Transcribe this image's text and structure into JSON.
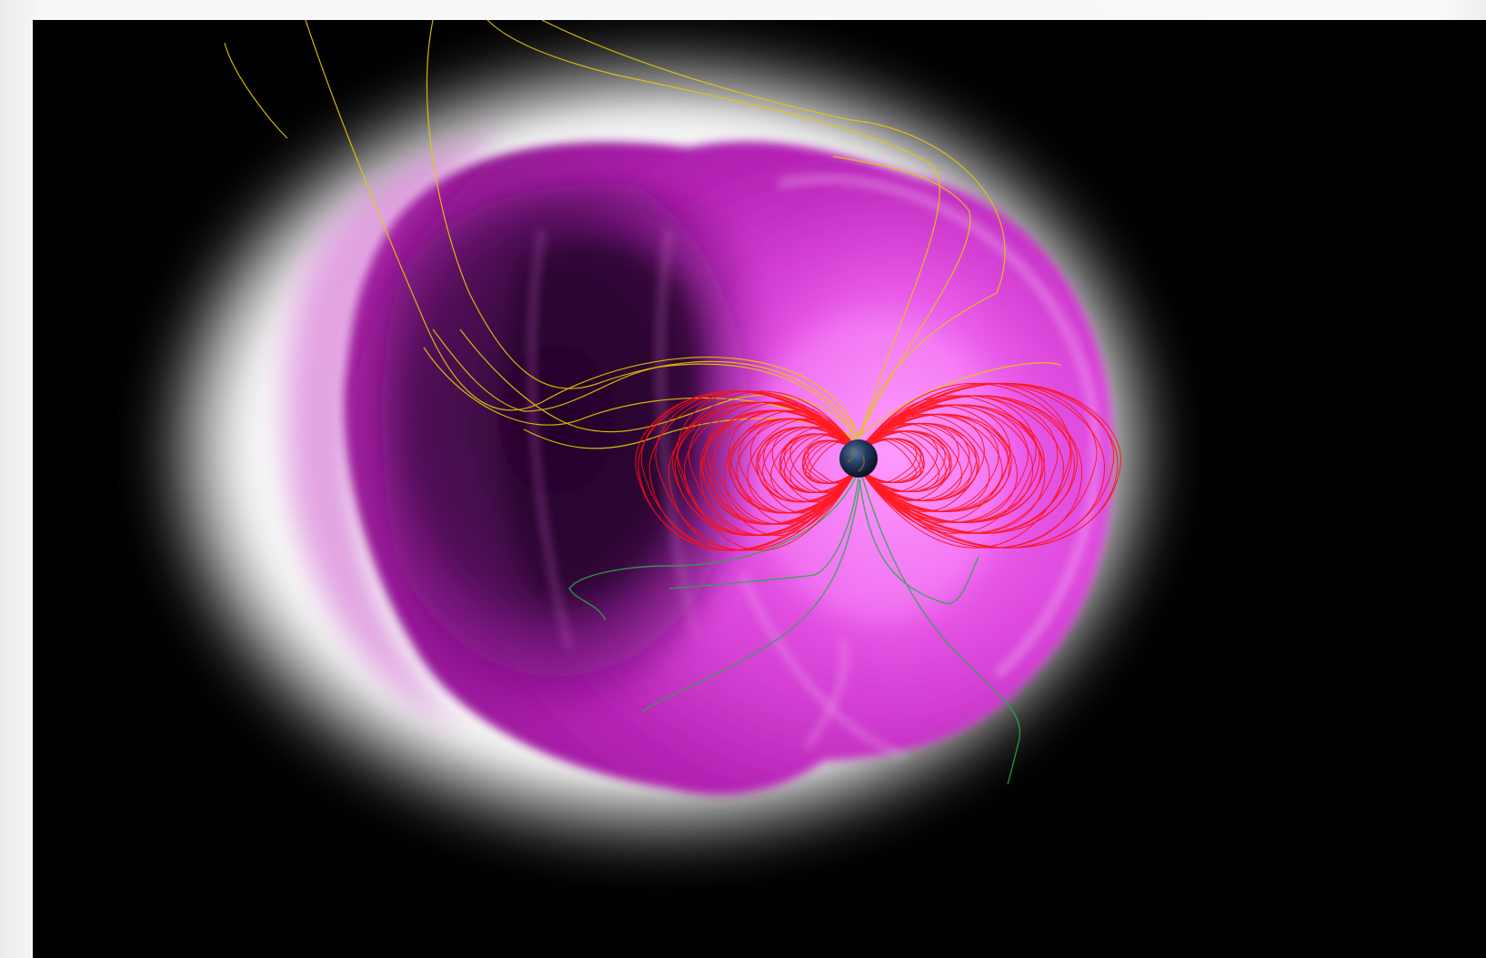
{
  "scene": {
    "subject": "magnetosphere-volume-render",
    "colors": {
      "background": "#000000",
      "page_border": "#f4f4f4",
      "sheath_glow": "#ffffff",
      "magnetosphere": "#d21ed2",
      "magnetosphere_dark": "#3c0a3c",
      "closed_field_lines": "#ff1010",
      "open_field_lines": "#e8c800",
      "tail_field_lines": "#2aa84a",
      "planet": "#1b2a4a"
    }
  }
}
